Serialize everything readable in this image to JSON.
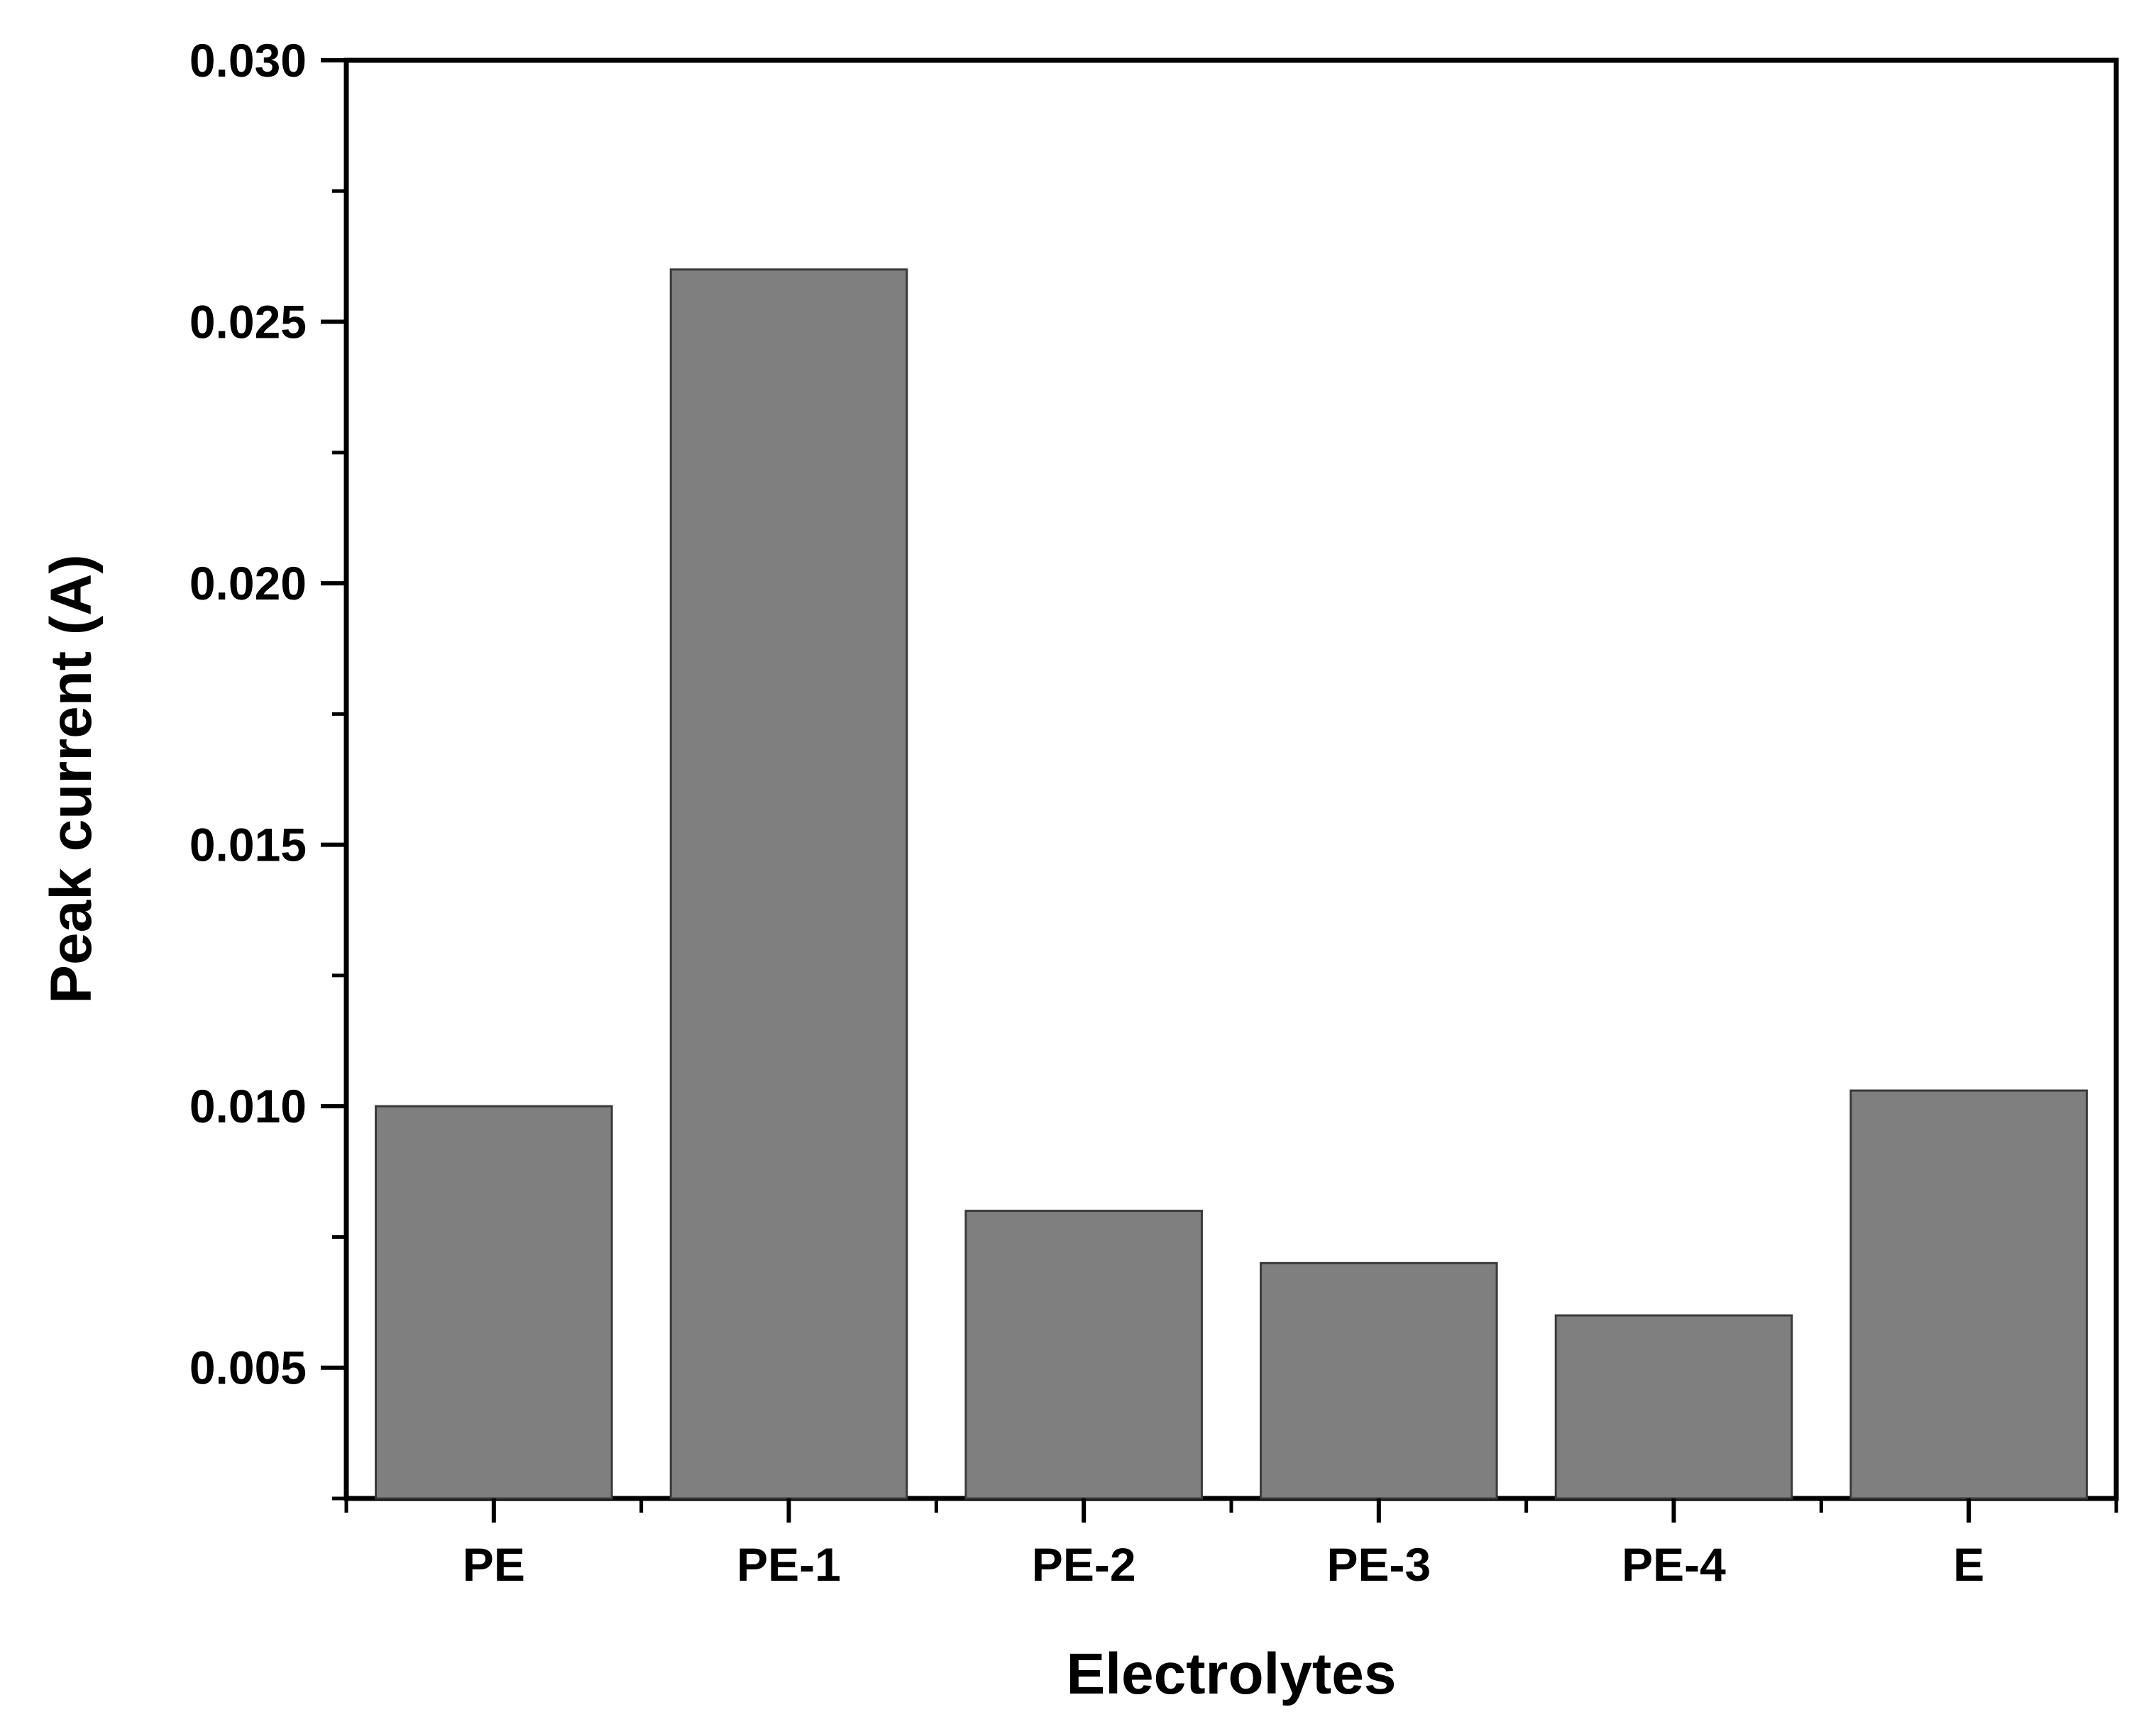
{
  "chart_data": {
    "type": "bar",
    "xlabel": "Electrolytes",
    "ylabel": "Peak current (A)",
    "categories": [
      "PE",
      "PE-1",
      "PE-2",
      "PE-3",
      "PE-4",
      "E"
    ],
    "values": [
      0.01,
      0.026,
      0.008,
      0.007,
      0.006,
      0.0103
    ],
    "ylim": [
      0.0025,
      0.03
    ],
    "yticks": [
      "0.005",
      "0.010",
      "0.015",
      "0.020",
      "0.025",
      "0.030"
    ],
    "ytick_values": [
      0.005,
      0.01,
      0.015,
      0.02,
      0.025,
      0.03
    ],
    "grid": false,
    "bar_color": "#7f7f7f",
    "bar_edge_color": "#3a3a3a"
  }
}
